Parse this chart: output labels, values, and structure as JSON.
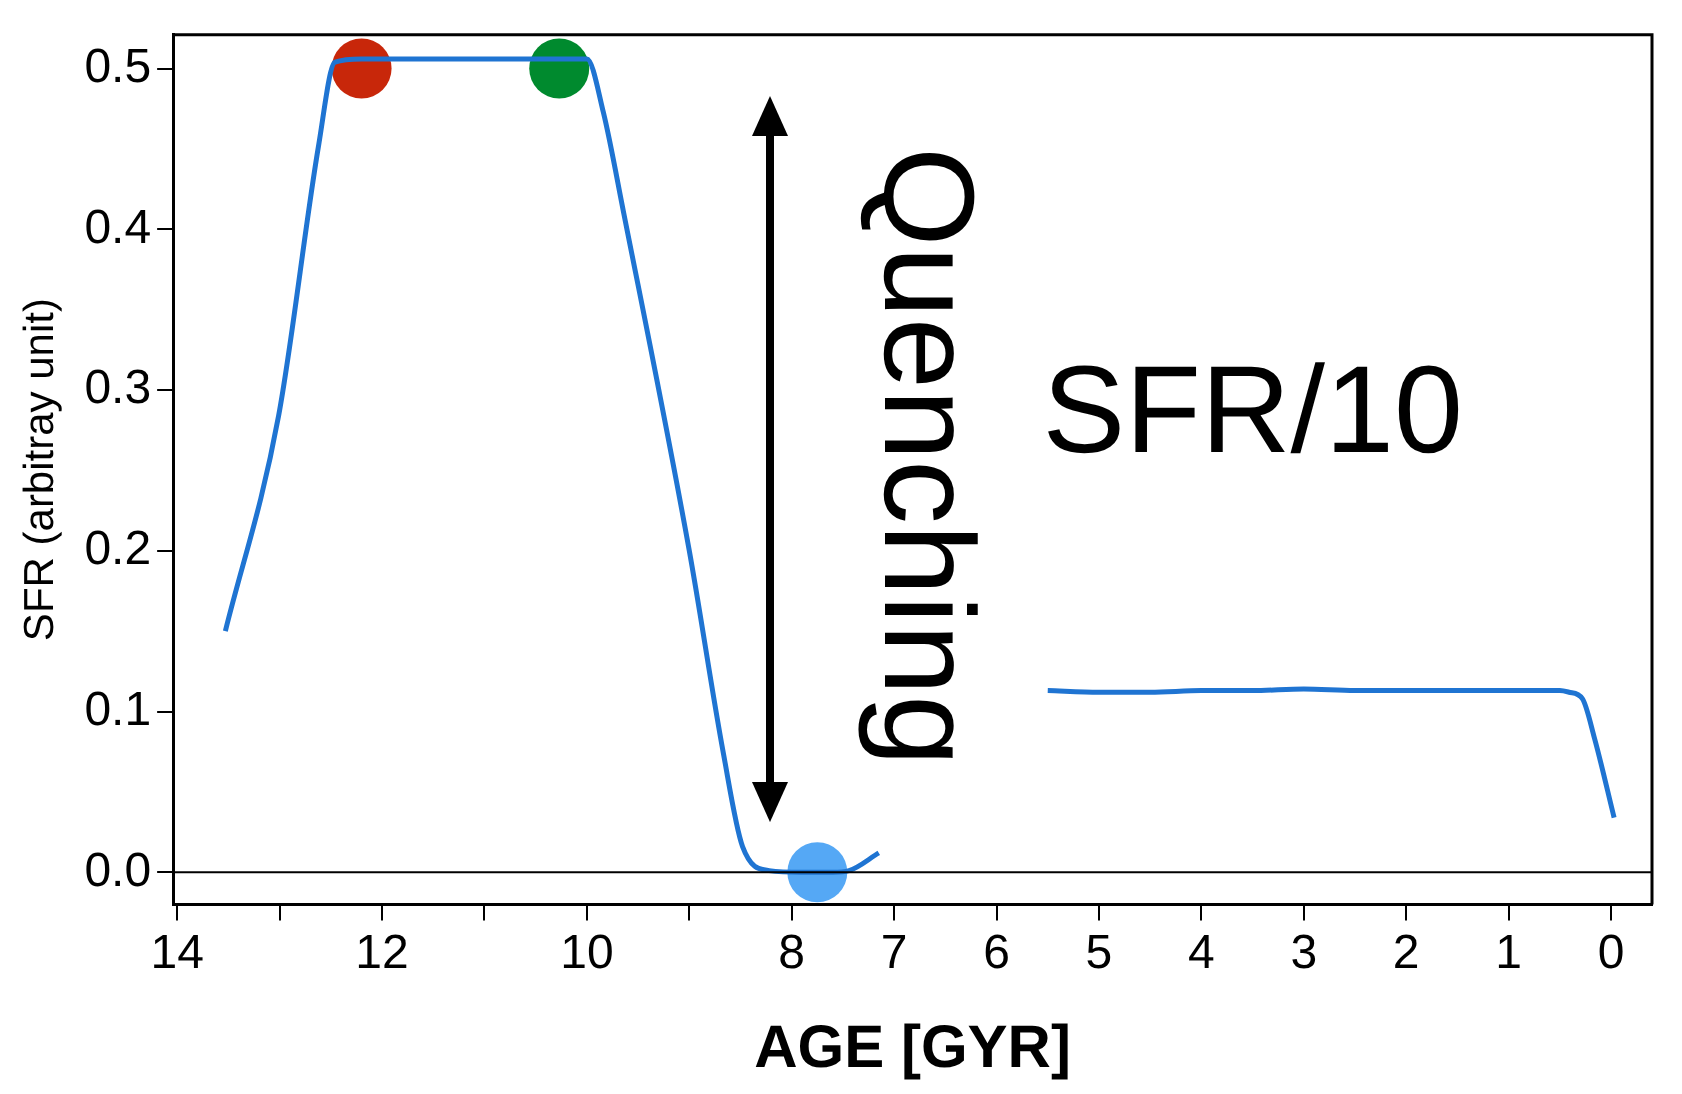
{
  "chart_data": {
    "type": "line",
    "xlabel": "AGE [GYR]",
    "ylabel": "SFR (arbitray unit)",
    "xlim": [
      14.04,
      -0.4
    ],
    "xticks": [
      14,
      {
        "value": 13,
        "label": null
      },
      12,
      {
        "value": 11,
        "label": null
      },
      10,
      {
        "value": 9,
        "label": null
      },
      8,
      7,
      6,
      5,
      4,
      3,
      2,
      1,
      0
    ],
    "ylim": [
      -0.02,
      0.521
    ],
    "yticks": [
      {
        "value": 0,
        "label": "0.0"
      },
      0.1,
      0.2,
      0.3,
      0.4,
      0.5
    ],
    "grid": false,
    "legend": false,
    "series": [
      {
        "color": "#1f74d2",
        "marker": "none",
        "x": [
          13.53,
          13.01,
          12.62,
          12.46,
          12.2,
          11,
          10.0,
          9.84,
          9.64,
          9.0,
          8.67,
          8.48,
          8.22,
          7.9,
          7.6,
          7.44,
          7.15
        ],
        "values": [
          0.15,
          0.284,
          0.452,
          0.504,
          0.506,
          0.506,
          0.506,
          0.473,
          0.41,
          0.2,
          0.075,
          0.016,
          0.001,
          0,
          0,
          0.001,
          0.012
        ]
      },
      {
        "color": "#1f74d2",
        "marker": "none",
        "x": [
          5.5,
          5,
          4.5,
          4,
          3.5,
          3,
          2.5,
          2,
          1.5,
          1,
          0.5,
          0.41,
          0.28,
          0.16,
          -0.03
        ],
        "values": [
          0.113,
          0.112,
          0.112,
          0.113,
          0.113,
          0.114,
          0.113,
          0.113,
          0.113,
          0.113,
          0.113,
          0.112,
          0.108,
          0.083,
          0.034
        ]
      },
      {
        "type": "scatter",
        "marker": "circle",
        "x": [
          12.2,
          10.27,
          7.75
        ],
        "values": [
          0.5,
          0.5,
          0
        ],
        "colors": [
          "#c8270a",
          "#008a2e",
          "#55a8f5"
        ]
      }
    ],
    "ref_lines": [
      {
        "axis": "y",
        "value": 0,
        "color": "#000000"
      }
    ],
    "annotations": [
      "Quenching",
      "SFR/10"
    ]
  }
}
